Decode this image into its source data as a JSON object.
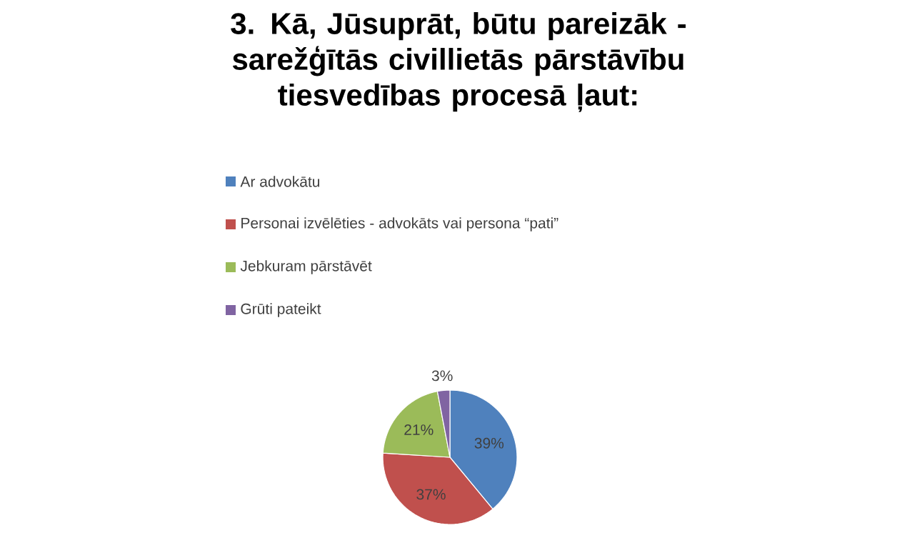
{
  "chart_data": {
    "type": "pie",
    "title": "3. Kā, Jūsuprāt, būtu pareizāk - sarežģītās civillietās pārstāvību tiesvedības procesā ļaut:",
    "categories": [
      "Ar advokātu",
      "Personai izvēlēties - advokāts vai persona “pati”",
      "Jebkuram pārstāvēt",
      "Grūti pateikt"
    ],
    "values": [
      39,
      37,
      21,
      3
    ],
    "value_labels": [
      "39%",
      "37%",
      "21%",
      "3%"
    ],
    "colors": [
      "#4f81bd",
      "#c0504d",
      "#9bbb59",
      "#8064a2"
    ],
    "legend": "top"
  }
}
